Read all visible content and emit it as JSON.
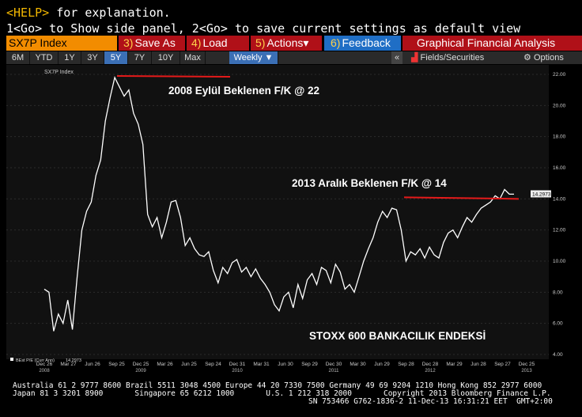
{
  "terminal": {
    "help_key": "<HELP>",
    "help_rest": " for explanation.",
    "line2": "1<Go> to Show side panel, 2<Go> to save current settings as default view"
  },
  "toolbar": {
    "ticker": "SX7P Index",
    "save": {
      "num": "3)",
      "label": "Save As"
    },
    "load": {
      "num": "4)",
      "label": "Load"
    },
    "actions": {
      "num": "5)",
      "label": "Actions",
      "caret": "▾"
    },
    "feedback": {
      "num": "6)",
      "label": "Feedback"
    },
    "title": "Graphical Financial Analysis"
  },
  "rangebar": {
    "ranges": [
      "6M",
      "YTD",
      "1Y",
      "3Y",
      "5Y",
      "7Y",
      "10Y",
      "Max"
    ],
    "active": "5Y",
    "frequency": "Weekly",
    "frequency_caret": "▼",
    "collapse": "«",
    "fields": "Fields/Securities",
    "options": "Options"
  },
  "chart_data": {
    "type": "line",
    "ticker_label": "SX7P Index",
    "legend": "BEst P/E (Curr Ann)",
    "legend_value": "14.2973",
    "last_value": "14.2973",
    "ylim": [
      4,
      22
    ],
    "y_ticks": [
      "4.00",
      "6.00",
      "8.00",
      "10.00",
      "12.00",
      "14.00",
      "16.00",
      "18.00",
      "20.00",
      "22.00"
    ],
    "x_ticks": [
      "Dec 26",
      "Mar 27",
      "Jun 26",
      "Sep 25",
      "Dec 25",
      "Mar 26",
      "Jun 25",
      "Sep 24",
      "Dec 31",
      "Mar 31",
      "Jun 30",
      "Sep 29",
      "Dec 30",
      "Mar 30",
      "Jun 29",
      "Sep 28",
      "Dec 28",
      "Mar 29",
      "Jun 28",
      "Sep 27",
      "Dec 25"
    ],
    "x_years": [
      "2008",
      "2009",
      "2010",
      "2011",
      "2012",
      "2013"
    ],
    "series": [
      {
        "color": "#ffffff",
        "x": [
          0,
          1,
          2,
          3,
          4,
          5,
          6,
          7,
          8,
          9,
          10,
          11,
          12,
          13,
          14,
          15,
          16,
          17,
          18,
          19,
          20,
          21,
          22,
          23,
          24,
          25,
          26,
          27,
          28,
          29,
          30,
          31,
          32,
          33,
          34,
          35,
          36,
          37,
          38,
          39,
          40,
          41,
          42,
          43,
          44,
          45,
          46,
          47,
          48,
          49,
          50,
          51,
          52,
          53,
          54,
          55,
          56,
          57,
          58,
          59,
          60,
          61,
          62,
          63,
          64,
          65,
          66,
          67,
          68,
          69,
          70,
          71,
          72,
          73,
          74,
          75,
          76,
          77,
          78,
          79,
          80,
          81,
          82,
          83,
          84,
          85,
          86,
          87,
          88,
          89,
          90,
          91,
          92,
          93,
          94,
          95,
          96,
          97,
          98,
          99,
          100
        ],
        "values": [
          8.2,
          8.0,
          5.5,
          6.6,
          6.0,
          7.5,
          5.6,
          9.0,
          12.0,
          13.2,
          13.8,
          15.5,
          16.5,
          19.0,
          20.5,
          21.8,
          21.2,
          20.6,
          21.0,
          19.5,
          18.8,
          17.5,
          13.0,
          12.2,
          12.8,
          11.5,
          12.5,
          13.8,
          13.9,
          12.8,
          11.0,
          11.5,
          10.8,
          10.4,
          10.3,
          10.6,
          9.4,
          8.6,
          9.6,
          9.2,
          9.9,
          10.1,
          9.3,
          9.6,
          9.0,
          9.5,
          8.9,
          8.5,
          8.0,
          7.2,
          6.8,
          7.7,
          8.0,
          7.0,
          8.5,
          7.6,
          8.8,
          9.2,
          8.5,
          9.6,
          9.4,
          8.6,
          9.8,
          9.3,
          8.2,
          8.5,
          8.0,
          9.0,
          10.0,
          10.8,
          11.5,
          12.5,
          13.2,
          12.8,
          13.4,
          13.3,
          12.0,
          10.0,
          10.6,
          10.4,
          10.8,
          10.2,
          10.9,
          10.4,
          10.2,
          11.2,
          11.8,
          12.0,
          11.5,
          12.2,
          12.8,
          12.5,
          13.0,
          13.4,
          13.6,
          13.8,
          14.2,
          14.0,
          14.6,
          14.3,
          14.3
        ]
      }
    ],
    "annotations": [
      {
        "text": "2008 Eylül Beklenen F/K @ 22",
        "value": 22
      },
      {
        "text": "2013 Aralık Beklenen F/K @ 14",
        "value": 14
      },
      {
        "text": "STOXX 600 BANKACILIK ENDEKSİ"
      }
    ],
    "annotation_color": "#e51a1a",
    "bg": "#111111"
  },
  "footer": {
    "line1": "Australia 61 2 9777 8600 Brazil 5511 3048 4500 Europe 44 20 7330 7500 Germany 49 69 9204 1210 Hong Kong 852 2977 6000",
    "line2": "Japan 81 3 3201 8900       Singapore 65 6212 1000       U.S. 1 212 318 2000       Copyright 2013 Bloomberg Finance L.P.",
    "line3": "SN 753466 G762-1836-2 11-Dec-13 16:31:21 EET  GMT+2:00"
  }
}
